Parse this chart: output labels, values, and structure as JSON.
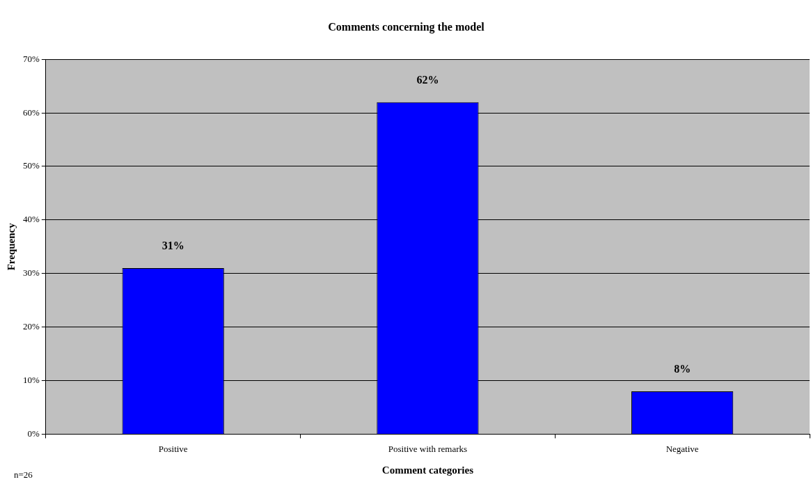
{
  "chart_data": {
    "type": "bar",
    "title": "Comments concerning the model",
    "xlabel": "Comment categories",
    "ylabel": "Frequency",
    "categories": [
      "Positive",
      "Positive with remarks",
      "Negative"
    ],
    "values": [
      31,
      62,
      8
    ],
    "color": "#0000ff",
    "value_labels": [
      "31%",
      "62%",
      "8%"
    ],
    "ylim": [
      0,
      70
    ],
    "yticks": [
      {
        "value": 0,
        "label": "0%"
      },
      {
        "value": 10,
        "label": "10%"
      },
      {
        "value": 20,
        "label": "20%"
      },
      {
        "value": 30,
        "label": "30%"
      },
      {
        "value": 40,
        "label": "40%"
      },
      {
        "value": 50,
        "label": "50%"
      },
      {
        "value": 60,
        "label": "60%"
      },
      {
        "value": 70,
        "label": "70%"
      }
    ],
    "grid": "y",
    "legend": false,
    "annotations": [
      "n=26"
    ]
  }
}
